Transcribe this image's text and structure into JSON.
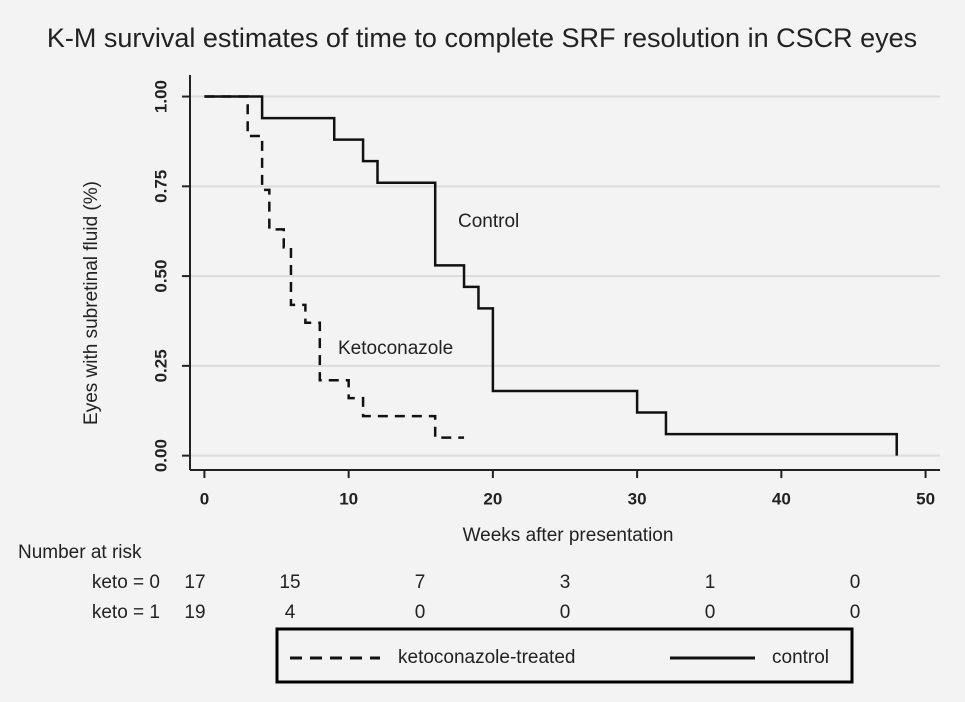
{
  "chart_data": {
    "type": "step",
    "title": "K-M survival estimates of time to complete SRF resolution in CSCR eyes",
    "y_label": "Eyes with subretinal fluid (%)",
    "x_label": "Weeks after presentation",
    "xlim": [
      -1,
      51
    ],
    "xticks": [
      0,
      10,
      20,
      30,
      40,
      50
    ],
    "ylim": [
      -0.04,
      1.06
    ],
    "yticks": [
      {
        "value": 0,
        "label": "0.00"
      },
      {
        "value": 0.25,
        "label": "0.25"
      },
      {
        "value": 0.5,
        "label": "0.50"
      },
      {
        "value": 0.75,
        "label": "0.75"
      },
      {
        "value": 1,
        "label": "1.00"
      }
    ],
    "grid": true,
    "legend": "bottom",
    "series": [
      {
        "name": "ketoconazole-treated",
        "color": "#111111",
        "dashed": true,
        "x": [
          0,
          3,
          4,
          4.5,
          5.5,
          6,
          7,
          8,
          10,
          11,
          16,
          18
        ],
        "values": [
          1,
          0.89,
          0.74,
          0.63,
          0.58,
          0.42,
          0.37,
          0.21,
          0.16,
          0.11,
          0.05,
          0.05
        ]
      },
      {
        "name": "control",
        "color": "#111111",
        "dashed": false,
        "x": [
          0,
          4,
          9,
          11,
          12,
          16,
          18,
          19,
          20,
          30,
          32,
          48
        ],
        "values": [
          1,
          0.94,
          0.88,
          0.82,
          0.76,
          0.53,
          0.47,
          0.41,
          0.18,
          0.12,
          0.06,
          0
        ]
      }
    ],
    "annotations": [
      "Ketoconazole",
      "Control"
    ],
    "risk_table": {
      "title": "Number at risk",
      "rows": [
        {
          "label": "keto = 0",
          "values": [
            17,
            15,
            7,
            3,
            1,
            0
          ]
        },
        {
          "label": "keto = 1",
          "values": [
            19,
            4,
            0,
            0,
            0,
            0
          ]
        }
      ]
    }
  }
}
